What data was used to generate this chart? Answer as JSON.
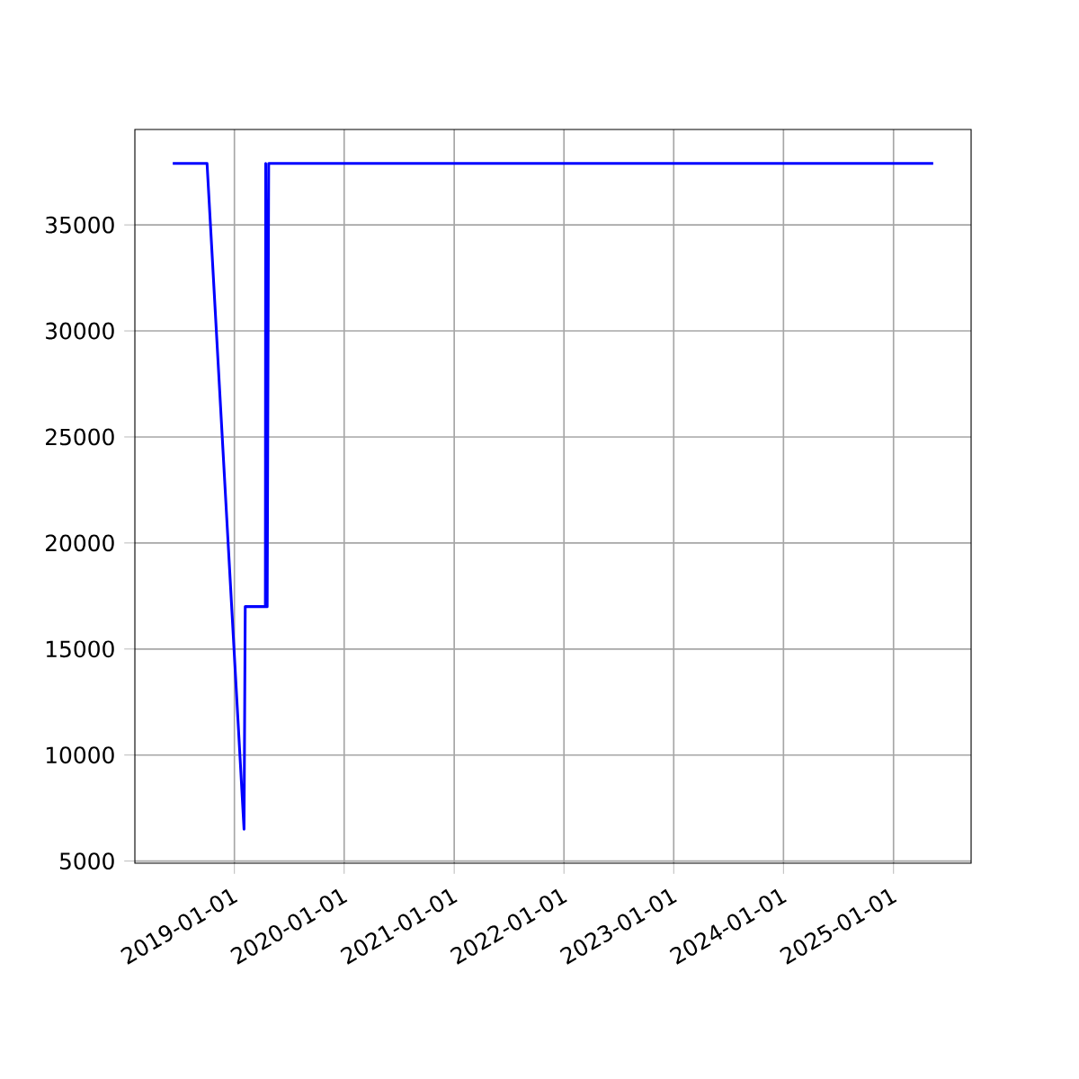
{
  "chart_data": {
    "type": "line",
    "x": [
      "2018-06-10",
      "2018-10-02",
      "2019-02-02",
      "2019-02-06",
      "2019-04-14",
      "2019-04-15",
      "2019-04-20",
      "2019-04-25",
      "2025-05-13"
    ],
    "series": [
      {
        "color": "#0000ff",
        "values": [
          37900,
          37900,
          6500,
          17000,
          17000,
          37900,
          17000,
          37900,
          37900
        ]
      }
    ],
    "xlim": [
      "2018-02-04",
      "2025-09-16"
    ],
    "ylim": [
      4900,
      39500
    ],
    "xticks": [
      "2019-01-01",
      "2020-01-01",
      "2021-01-01",
      "2022-01-01",
      "2023-01-01",
      "2024-01-01",
      "2025-01-01"
    ],
    "yticks": [
      5000,
      10000,
      15000,
      20000,
      25000,
      30000,
      35000
    ],
    "grid": true,
    "marker": "none",
    "line_style": "solid"
  }
}
